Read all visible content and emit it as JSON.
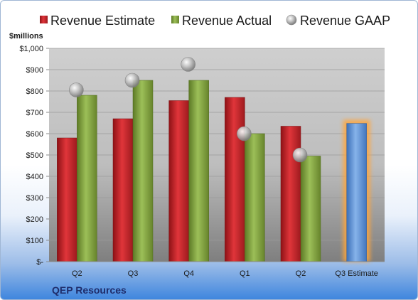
{
  "company": "QEP Resources",
  "chart_data": {
    "type": "bar",
    "units_label": "$millions",
    "categories": [
      "Q2",
      "Q3",
      "Q4",
      "Q1",
      "Q2",
      "Q3 Estimate"
    ],
    "ylim": [
      0,
      1000
    ],
    "yticks": [
      0,
      100,
      200,
      300,
      400,
      500,
      600,
      700,
      800,
      900,
      1000
    ],
    "ytick_labels": [
      "$-",
      "$100",
      "$200",
      "$300",
      "$400",
      "$500",
      "$600",
      "$700",
      "$800",
      "$900",
      "$1,000"
    ],
    "grid": true,
    "legend_position": "top",
    "series": [
      {
        "name": "Revenue Estimate",
        "kind": "bar",
        "color": "#c0262b",
        "values": [
          580,
          670,
          755,
          770,
          635,
          null
        ]
      },
      {
        "name": "Revenue Actual",
        "kind": "bar",
        "color": "#7a9a3a",
        "values": [
          780,
          850,
          850,
          600,
          495,
          null
        ]
      },
      {
        "name": "Revenue GAAP",
        "kind": "marker",
        "color": "#a8a8a8",
        "values": [
          805,
          850,
          925,
          600,
          500,
          null
        ]
      },
      {
        "name": "Q3 Estimate",
        "kind": "highlight-bar",
        "color": "#5b8fd6",
        "values": [
          null,
          null,
          null,
          null,
          null,
          648
        ]
      }
    ]
  }
}
